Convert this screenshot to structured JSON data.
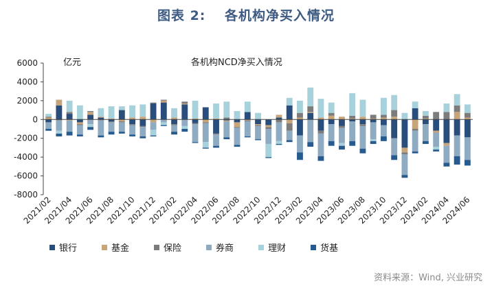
{
  "figure_title": "图表 2:　 各机构净买入情况",
  "source": "资料来源：Wind, 兴业研究",
  "chart_data": {
    "type": "bar",
    "stacked": true,
    "title": "各机构NCD净买入情况",
    "unit": "亿元",
    "ylim": [
      -8000,
      6000
    ],
    "yticks": [
      -8000,
      -6000,
      -4000,
      -2000,
      0,
      2000,
      4000,
      6000
    ],
    "ytick_labels": [
      "-8000",
      "-6000",
      "-4000",
      "-2000",
      "0",
      "2000",
      "4000",
      "6000"
    ],
    "grid": false,
    "legend_position": "bottom",
    "categories": [
      "2021/02",
      "2021/03",
      "2021/04",
      "2021/05",
      "2021/06",
      "2021/07",
      "2021/08",
      "2021/09",
      "2021/10",
      "2021/11",
      "2021/12",
      "2022/01",
      "2022/02",
      "2022/03",
      "2022/04",
      "2022/05",
      "2022/06",
      "2022/07",
      "2022/08",
      "2022/09",
      "2022/10",
      "2022/11",
      "2022/12",
      "2023/01",
      "2023/02",
      "2023/03",
      "2023/04",
      "2023/05",
      "2023/06",
      "2023/07",
      "2023/08",
      "2023/09",
      "2023/10",
      "2023/11",
      "2023/12",
      "2024/01",
      "2024/02",
      "2024/03",
      "2024/04",
      "2024/05",
      "2024/06"
    ],
    "xtick_labels": [
      "2021/02",
      "2021/04",
      "2021/06",
      "2021/08",
      "2021/10",
      "2021/12",
      "2022/02",
      "2022/04",
      "2022/06",
      "2022/08",
      "2022/10",
      "2022/12",
      "2023/02",
      "2023/04",
      "2023/06",
      "2023/08",
      "2023/10",
      "2023/12",
      "2024/02",
      "2024/04",
      "2024/06"
    ],
    "series": [
      {
        "name": "银行",
        "color": "#2a4e7c",
        "values": [
          -300,
          1500,
          600,
          -300,
          500,
          200,
          -200,
          1000,
          -500,
          -700,
          1700,
          1800,
          -500,
          1600,
          -400,
          1300,
          -1500,
          -100,
          -300,
          800,
          -500,
          -600,
          200,
          1500,
          -1700,
          700,
          -1200,
          -500,
          -700,
          -200,
          -500,
          -300,
          -600,
          -2000,
          -3000,
          1200,
          -500,
          -1200,
          -2500,
          -1700,
          -1900
        ]
      },
      {
        "name": "基金",
        "color": "#c8a47a",
        "values": [
          200,
          600,
          -100,
          -200,
          300,
          100,
          100,
          -200,
          200,
          300,
          -300,
          200,
          200,
          100,
          100,
          -300,
          100,
          -100,
          -500,
          -100,
          -100,
          -200,
          300,
          -400,
          200,
          100,
          200,
          400,
          300,
          100,
          300,
          100,
          200,
          300,
          -500,
          -1000,
          100,
          -200,
          -300,
          800,
          200
        ]
      },
      {
        "name": "保险",
        "color": "#7c7c7c",
        "values": [
          100,
          -100,
          200,
          -100,
          100,
          -100,
          -100,
          -100,
          -100,
          -100,
          100,
          100,
          -100,
          200,
          -100,
          -100,
          -100,
          200,
          -100,
          -100,
          -100,
          -200,
          -300,
          -800,
          500,
          600,
          -300,
          300,
          -200,
          300,
          -200,
          400,
          300,
          700,
          -200,
          -200,
          300,
          800,
          800,
          700,
          500
        ]
      },
      {
        "name": "券商",
        "color": "#8fabc2",
        "values": [
          -700,
          -1100,
          -1200,
          -1000,
          -500,
          -1600,
          -1000,
          -1000,
          -1000,
          -1000,
          -800,
          -300,
          -700,
          -700,
          -1900,
          -2000,
          -1200,
          -1700,
          -1800,
          -1600,
          -1400,
          -1600,
          -2000,
          -1000,
          -1800,
          -2400,
          -2400,
          -1800,
          -1600,
          -2100,
          -2400,
          -1800,
          -1200,
          -1800,
          -2200,
          -2200,
          -1800,
          -1500,
          -1800,
          -2200,
          -2400
        ]
      },
      {
        "name": "理财",
        "color": "#a7d1db",
        "values": [
          300,
          -300,
          1200,
          1500,
          -300,
          900,
          1300,
          400,
          1300,
          1300,
          -600,
          -300,
          1000,
          -300,
          1900,
          -600,
          1600,
          1700,
          900,
          1100,
          700,
          -1400,
          -300,
          800,
          1300,
          2000,
          2000,
          1100,
          -300,
          2400,
          1800,
          -200,
          1800,
          1600,
          700,
          700,
          500,
          -300,
          900,
          1200,
          900
        ]
      },
      {
        "name": "货基",
        "color": "#275b8f",
        "values": [
          -200,
          -300,
          -400,
          -200,
          -300,
          -200,
          -300,
          -200,
          -200,
          -200,
          -100,
          -100,
          -300,
          -300,
          -100,
          -100,
          -200,
          -200,
          -200,
          -100,
          -100,
          -100,
          -100,
          -200,
          -800,
          -500,
          -500,
          -500,
          -400,
          -500,
          -500,
          -300,
          -500,
          -500,
          -300,
          -200,
          -300,
          -200,
          -400,
          -900,
          -600
        ]
      }
    ]
  }
}
